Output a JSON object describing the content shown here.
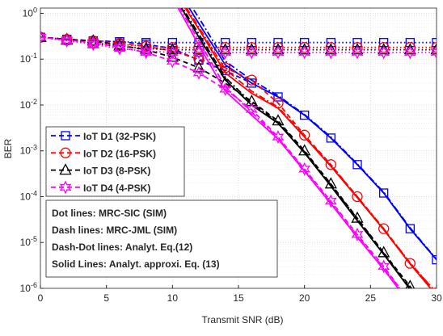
{
  "chart_data": {
    "type": "line",
    "x_label": "Transmit SNR (dB)",
    "y_label": "BER",
    "x": [
      0,
      2,
      4,
      6,
      8,
      10,
      12,
      14,
      16,
      18,
      20,
      22,
      24,
      26,
      28,
      30
    ],
    "xlim": [
      0,
      30
    ],
    "xticks": [
      0,
      5,
      10,
      15,
      20,
      25,
      30
    ],
    "ylim": [
      1e-06,
      1.3
    ],
    "log_y": true,
    "grid": true,
    "legend": "upper left",
    "yticks": [
      {
        "value": 1e-06,
        "label": "10^-6"
      },
      {
        "value": 1e-05,
        "label": "10^-5"
      },
      {
        "value": 0.0001,
        "label": "10^-4"
      },
      {
        "value": 0.001,
        "label": "10^-3"
      },
      {
        "value": 0.01,
        "label": "10^-2"
      },
      {
        "value": 0.1,
        "label": "10^-1"
      },
      {
        "value": 1,
        "label": "10^0"
      }
    ],
    "line_styles": {
      "sic": "1.5 3",
      "jml": "6 4",
      "analytic": "8 3 2 3",
      "approx": "none"
    },
    "marked_curves": [
      "sic",
      "jml"
    ],
    "series": [
      {
        "name": "IoT D1 (32-PSK)",
        "color": "#0000ff",
        "marker": "square",
        "sic": [
          0.3,
          0.27,
          0.25,
          0.24,
          0.23,
          0.23,
          0.23,
          0.23,
          0.23,
          0.23,
          0.23,
          0.23,
          0.23,
          0.23,
          0.23,
          0.23
        ],
        "jml": [
          0.3,
          0.27,
          0.25,
          0.24,
          0.21,
          0.17,
          0.095,
          0.056,
          0.03,
          0.015,
          0.006,
          0.0019,
          0.0005,
          0.00012,
          2e-05,
          4.2e-06
        ],
        "analytic": [
          null,
          null,
          null,
          null,
          null,
          6,
          0.8,
          0.09,
          0.035,
          0.016,
          0.0062,
          0.002,
          0.00052,
          0.000125,
          2.1e-05,
          4.3e-06
        ],
        "approx": [
          null,
          null,
          null,
          null,
          null,
          5,
          0.6,
          0.075,
          0.03,
          0.015,
          0.006,
          0.0019,
          0.0005,
          0.00012,
          2e-05,
          4.2e-06
        ]
      },
      {
        "name": "IoT D2 (16-PSK)",
        "color": "#ff0000",
        "marker": "circle",
        "sic": [
          0.3,
          0.26,
          0.23,
          0.21,
          0.19,
          0.18,
          0.18,
          0.18,
          0.18,
          0.18,
          0.18,
          0.18,
          0.18,
          0.18,
          0.18,
          0.18
        ],
        "jml": [
          0.3,
          0.27,
          0.25,
          0.22,
          0.19,
          0.15,
          0.1,
          0.065,
          0.035,
          0.011,
          0.0022,
          0.0005,
          0.0001,
          2e-05,
          3.5e-06,
          8e-07
        ],
        "analytic": [
          null,
          null,
          null,
          null,
          null,
          4,
          0.5,
          0.06,
          0.02,
          0.009,
          0.0021,
          0.00048,
          0.0001,
          2e-05,
          3.6e-06,
          8e-07
        ],
        "approx": [
          null,
          null,
          null,
          null,
          null,
          3.5,
          0.45,
          0.05,
          0.018,
          0.0085,
          0.002,
          0.00046,
          9.5e-05,
          1.9e-05,
          3.4e-06,
          7e-07
        ]
      },
      {
        "name": "IoT D3 (8-PSK)",
        "color": "#000000",
        "marker": "triangle",
        "sic": [
          0.3,
          0.26,
          0.22,
          0.19,
          0.17,
          0.16,
          0.16,
          0.16,
          0.16,
          0.16,
          0.16,
          0.16,
          0.16,
          0.16,
          0.16,
          0.16
        ],
        "jml": [
          0.3,
          0.27,
          0.25,
          0.2,
          0.16,
          0.11,
          0.065,
          0.03,
          0.012,
          0.0045,
          0.001,
          0.00019,
          3.4e-05,
          6e-06,
          1.1e-06,
          2e-07
        ],
        "analytic": [
          null,
          null,
          null,
          null,
          null,
          3,
          0.35,
          0.04,
          0.011,
          0.0042,
          0.00095,
          0.00018,
          3.3e-05,
          5.8e-06,
          1e-06,
          2e-07
        ],
        "approx": [
          null,
          null,
          null,
          null,
          null,
          2.8,
          0.3,
          0.035,
          0.01,
          0.004,
          0.0009,
          0.00017,
          3e-05,
          5.5e-06,
          9.5e-07,
          1.8e-07
        ]
      },
      {
        "name": "IoT D4 (4-PSK)",
        "color": "#ff00ff",
        "marker": "hexagram",
        "sic": [
          0.3,
          0.25,
          0.21,
          0.17,
          0.15,
          0.14,
          0.14,
          0.14,
          0.14,
          0.14,
          0.14,
          0.14,
          0.14,
          0.14,
          0.14,
          0.14
        ],
        "jml": [
          0.3,
          0.26,
          0.23,
          0.18,
          0.14,
          0.09,
          0.05,
          0.022,
          0.008,
          0.002,
          0.0004,
          8e-05,
          1.5e-05,
          3e-06,
          5e-07,
          1e-07
        ],
        "analytic": [
          null,
          null,
          null,
          null,
          null,
          2.5,
          0.25,
          0.025,
          0.007,
          0.0019,
          0.00038,
          7.5e-05,
          1.4e-05,
          2.8e-06,
          5e-07,
          1e-07
        ],
        "approx": [
          null,
          null,
          null,
          null,
          null,
          2.2,
          0.2,
          0.02,
          0.006,
          0.0018,
          0.00036,
          7e-05,
          1.3e-05,
          2.6e-06,
          4.5e-07,
          9e-08
        ]
      }
    ],
    "annotations": [
      "Dot lines: MRC-SIC (SIM)",
      "Dash lines: MRC-JML (SIM)",
      "Dash-Dot lines: Analyt. Eq.(12)",
      "Solid Lines: Analyt. approxi. Eq. (13)"
    ]
  }
}
